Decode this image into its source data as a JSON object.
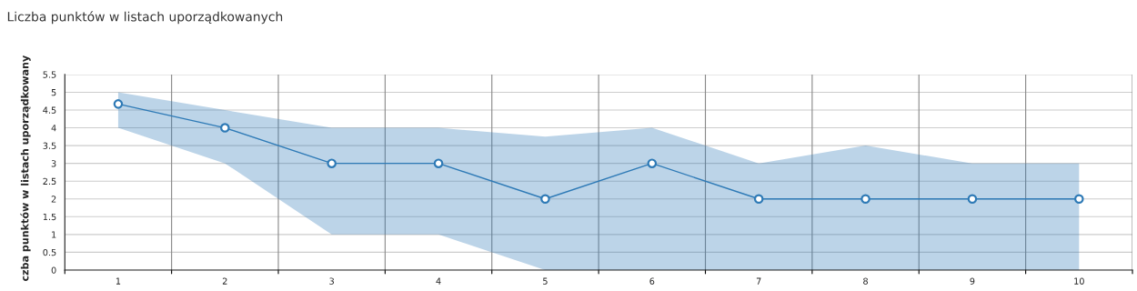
{
  "chart_data": {
    "type": "line",
    "title": "Liczba punktów w listach uporządkowanych",
    "ylabel": "czba punktów w listach uporządkowany",
    "categories": [
      "1",
      "2",
      "3",
      "4",
      "5",
      "6",
      "7",
      "8",
      "9",
      "10"
    ],
    "series": [
      {
        "color": "#2e7ab6",
        "values": [
          4.67,
          4,
          3,
          3,
          2,
          3,
          2,
          2,
          2,
          2
        ],
        "lower": [
          4,
          3,
          1,
          1,
          0,
          0,
          0,
          0,
          0,
          0
        ],
        "upper": [
          5,
          4.5,
          4,
          4,
          3.75,
          4,
          3,
          3.5,
          3,
          3
        ]
      }
    ],
    "ylim": [
      0,
      5.5
    ],
    "yticks": [
      0,
      0.5,
      1,
      1.5,
      2,
      2.5,
      3,
      3.5,
      4,
      4.5,
      5,
      5.5
    ],
    "grid": true,
    "marker": "circle",
    "line_style": "solid",
    "legend": false
  }
}
